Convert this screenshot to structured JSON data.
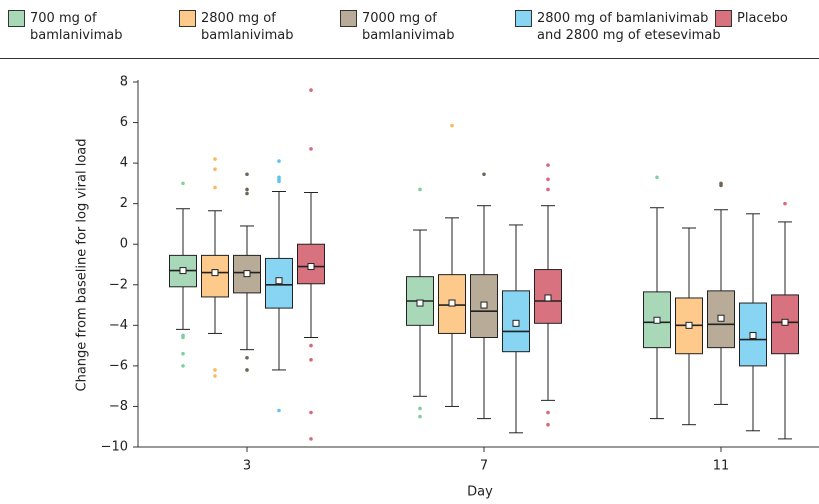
{
  "chart_data": {
    "type": "box",
    "x_label": "Day",
    "y_label": "Change from baseline for log viral load",
    "categories": [
      "3",
      "7",
      "11"
    ],
    "ylim": [
      -10,
      8
    ],
    "yticks": [
      {
        "value": -10,
        "label": "−10"
      },
      {
        "value": -8,
        "label": "−8"
      },
      {
        "value": -6,
        "label": "−6"
      },
      {
        "value": -4,
        "label": "−4"
      },
      {
        "value": -2,
        "label": "−2"
      },
      0,
      2,
      4,
      6,
      8
    ],
    "series": [
      {
        "name": "700 mg of bamlanivimab",
        "color": "#a9d8b8",
        "outlier_color": "#7fcfa0",
        "boxes": [
          {
            "low": -4.2,
            "q1": -2.1,
            "median": -1.3,
            "q3": -0.55,
            "high": 1.75,
            "mean": -1.3,
            "outliers": [
              3.0,
              -4.5,
              -4.6,
              -5.4,
              -6.0
            ]
          },
          {
            "low": -7.5,
            "q1": -4.0,
            "median": -2.8,
            "q3": -1.6,
            "high": 0.7,
            "mean": -2.9,
            "outliers": [
              2.7,
              -8.1,
              -8.5
            ]
          },
          {
            "low": -8.6,
            "q1": -5.1,
            "median": -3.85,
            "q3": -2.35,
            "high": 1.8,
            "mean": -3.75,
            "outliers": [
              3.3
            ]
          }
        ]
      },
      {
        "name": "2800 mg of bamlanivimab",
        "color": "#fdca8c",
        "outlier_color": "#fbb85e",
        "boxes": [
          {
            "low": -4.4,
            "q1": -2.6,
            "median": -1.4,
            "q3": -0.55,
            "high": 1.65,
            "mean": -1.4,
            "outliers": [
              4.2,
              3.7,
              2.8,
              -6.2,
              -6.5
            ]
          },
          {
            "low": -8.0,
            "q1": -4.4,
            "median": -3.0,
            "q3": -1.5,
            "high": 1.3,
            "mean": -2.9,
            "outliers": [
              5.85
            ]
          },
          {
            "low": -8.9,
            "q1": -5.4,
            "median": -4.0,
            "q3": -2.65,
            "high": 0.8,
            "mean": -4.0,
            "outliers": []
          }
        ]
      },
      {
        "name": "7000 mg of bamlanivimab",
        "color": "#b8ab97",
        "outlier_color": "#6e6558",
        "boxes": [
          {
            "low": -5.2,
            "q1": -2.4,
            "median": -1.4,
            "q3": -0.55,
            "high": 0.9,
            "mean": -1.45,
            "outliers": [
              3.45,
              2.7,
              2.5,
              -5.6,
              -6.2
            ]
          },
          {
            "low": -8.6,
            "q1": -4.6,
            "median": -3.3,
            "q3": -1.5,
            "high": 1.9,
            "mean": -3.0,
            "outliers": [
              3.45
            ]
          },
          {
            "low": -7.9,
            "q1": -5.1,
            "median": -3.95,
            "q3": -2.3,
            "high": 1.7,
            "mean": -3.65,
            "outliers": [
              3.0,
              2.9
            ]
          }
        ]
      },
      {
        "name": "2800 mg of bamlanivimab and 2800 mg of etesevimab",
        "color": "#88d4f3",
        "outlier_color": "#5fc4ee",
        "boxes": [
          {
            "low": -6.2,
            "q1": -3.15,
            "median": -2.0,
            "q3": -0.7,
            "high": 2.6,
            "mean": -1.8,
            "outliers": [
              4.1,
              3.3,
              3.2,
              3.1,
              -8.2
            ]
          },
          {
            "low": -9.3,
            "q1": -5.3,
            "median": -4.3,
            "q3": -2.3,
            "high": 0.95,
            "mean": -3.9,
            "outliers": []
          },
          {
            "low": -9.2,
            "q1": -6.0,
            "median": -4.7,
            "q3": -2.9,
            "high": 1.5,
            "mean": -4.5,
            "outliers": []
          }
        ]
      },
      {
        "name": "Placebo",
        "color": "#d9727f",
        "outlier_color": "#d66a7c",
        "boxes": [
          {
            "low": -4.6,
            "q1": -1.95,
            "median": -1.1,
            "q3": 0,
            "high": 2.55,
            "mean": -1.1,
            "outliers": [
              7.6,
              4.7,
              -5.0,
              -5.7,
              -8.3,
              -9.6
            ]
          },
          {
            "low": -7.7,
            "q1": -3.9,
            "median": -2.8,
            "q3": -1.25,
            "high": 1.9,
            "mean": -2.65,
            "outliers": [
              3.9,
              3.2,
              2.7,
              -8.3,
              -8.9
            ]
          },
          {
            "low": -9.6,
            "q1": -5.4,
            "median": -3.85,
            "q3": -2.5,
            "high": 1.1,
            "mean": -3.85,
            "outliers": [
              2.0
            ]
          }
        ]
      }
    ]
  }
}
